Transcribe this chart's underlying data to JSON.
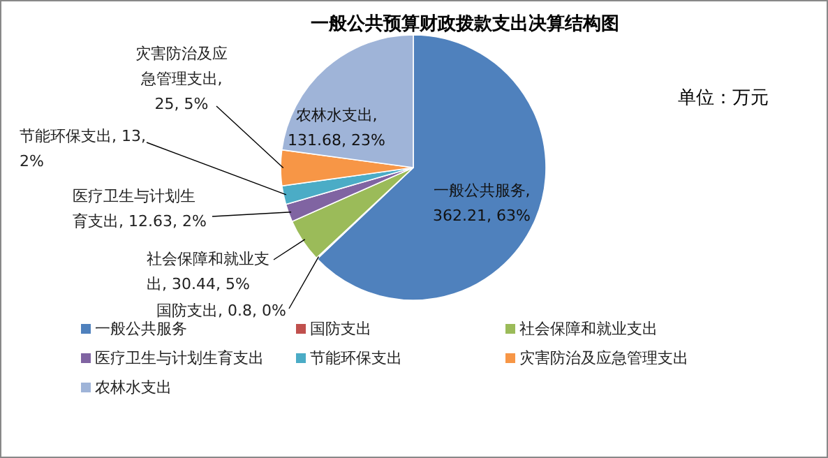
{
  "chart_data": {
    "type": "pie",
    "title": "一般公共预算财政拨款支出决算结构图",
    "categories": [
      "一般公共服务",
      "国防支出",
      "社会保障和就业支出",
      "医疗卫生与计划生育支出",
      "节能环保支出",
      "灾害防治及应急管理支出",
      "农林水支出"
    ],
    "values": [
      362.21,
      0.8,
      30.44,
      12.63,
      13,
      25,
      131.68
    ],
    "colors": [
      "#4f81bd",
      "#c0504d",
      "#9bbb59",
      "#8064a2",
      "#4bacc6",
      "#f79646",
      "#9fb4d8"
    ],
    "value_labels": [
      "一般公共服务, 362.21, 63%",
      "国防支出, 0.8, 0%",
      "社会保障和就业支出, 30.44, 5%",
      "医疗卫生与计划生育支出, 12.63, 2%",
      "节能环保支出, 13, 2%",
      "灾害防治及应急管理支出, 25, 5%",
      "农林水支出, 131.68, 23%"
    ],
    "legend": "bottom",
    "annotations": [
      "单位：万元"
    ]
  }
}
